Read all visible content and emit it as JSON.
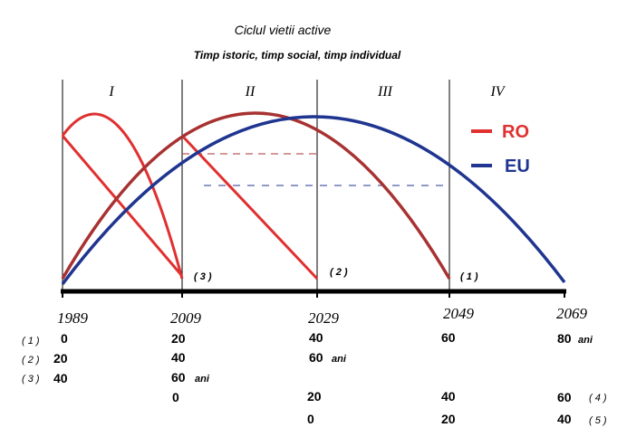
{
  "title": "Ciclul vietii active",
  "subtitle": "Timp istoric, timp social, timp individual",
  "periods": [
    "I",
    "II",
    "III",
    "IV"
  ],
  "legend": [
    {
      "label": "RO",
      "color": "#e03030"
    },
    {
      "label": "EU",
      "color": "#1f3590"
    }
  ],
  "years": [
    "1989",
    "2009",
    "2029",
    "2049",
    "2069"
  ],
  "curve_markers": [
    "( 3 )",
    "( 2 )",
    "( 1 )"
  ],
  "cohort_rows": [
    {
      "label": "( 1 )",
      "values": [
        "0",
        "20",
        "40",
        "60",
        "80"
      ],
      "unit": "ani"
    },
    {
      "label": "( 2 )",
      "values": [
        "20",
        "40",
        "60"
      ],
      "unit": "ani"
    },
    {
      "label": "( 3 )",
      "values": [
        "40",
        "60"
      ],
      "unit": "ani"
    },
    {
      "label": "( 4 )",
      "values": [
        "0",
        "20",
        "40",
        "60"
      ]
    },
    {
      "label": "( 5 )",
      "values": [
        "0",
        "20",
        "40"
      ]
    }
  ],
  "colors": {
    "ro_line": "#e03030",
    "ro_dark_line": "#a83232",
    "eu_line": "#1f3590",
    "axis": "#000000"
  }
}
